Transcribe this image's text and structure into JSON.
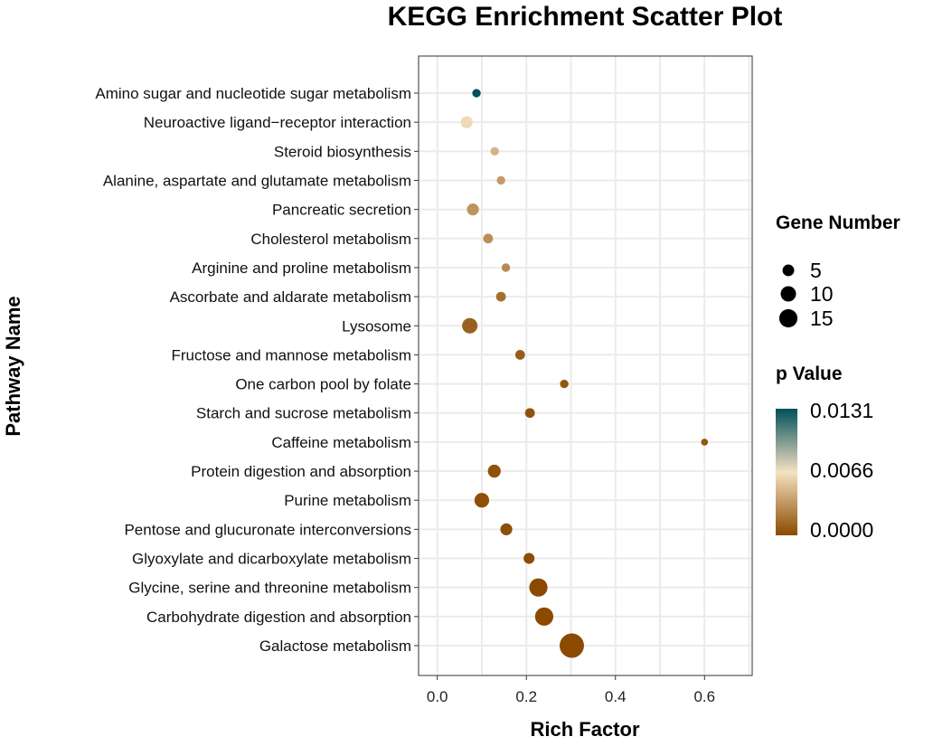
{
  "chart_data": {
    "type": "scatter",
    "title": "KEGG Enrichment Scatter Plot",
    "xlabel": "Rich Factor",
    "ylabel": "Pathway Name",
    "xlim": [
      -0.042,
      0.707
    ],
    "xticks": [
      0.0,
      0.2,
      0.4,
      0.6
    ],
    "xtick_labels": [
      "0.0",
      "0.2",
      "0.4",
      "0.6"
    ],
    "grid": true,
    "points": [
      {
        "pathway": "Amino sugar and nucleotide sugar metabolism",
        "rich_factor": 0.088,
        "gene_number": 3,
        "p_value": 0.0131
      },
      {
        "pathway": "Neuroactive ligand−receptor interaction",
        "rich_factor": 0.066,
        "gene_number": 6,
        "p_value": 0.0062
      },
      {
        "pathway": "Steroid biosynthesis",
        "rich_factor": 0.129,
        "gene_number": 3,
        "p_value": 0.0045
      },
      {
        "pathway": "Alanine, aspartate and glutamate metabolism",
        "rich_factor": 0.143,
        "gene_number": 3,
        "p_value": 0.0035
      },
      {
        "pathway": "Pancreatic secretion",
        "rich_factor": 0.08,
        "gene_number": 6,
        "p_value": 0.0032
      },
      {
        "pathway": "Cholesterol metabolism",
        "rich_factor": 0.114,
        "gene_number": 4,
        "p_value": 0.003
      },
      {
        "pathway": "Arginine and proline metabolism",
        "rich_factor": 0.154,
        "gene_number": 3,
        "p_value": 0.0028
      },
      {
        "pathway": "Ascorbate and aldarate metabolism",
        "rich_factor": 0.143,
        "gene_number": 4,
        "p_value": 0.0016
      },
      {
        "pathway": "Lysosome",
        "rich_factor": 0.073,
        "gene_number": 10,
        "p_value": 0.001
      },
      {
        "pathway": "Fructose and mannose metabolism",
        "rich_factor": 0.186,
        "gene_number": 4,
        "p_value": 0.0008
      },
      {
        "pathway": "One carbon pool by folate",
        "rich_factor": 0.285,
        "gene_number": 3,
        "p_value": 0.0006
      },
      {
        "pathway": "Starch and sucrose metabolism",
        "rich_factor": 0.208,
        "gene_number": 4,
        "p_value": 0.0004
      },
      {
        "pathway": "Caffeine metabolism",
        "rich_factor": 0.6,
        "gene_number": 2,
        "p_value": 0.0005
      },
      {
        "pathway": "Protein digestion and absorption",
        "rich_factor": 0.128,
        "gene_number": 7,
        "p_value": 0.0003
      },
      {
        "pathway": "Purine metabolism",
        "rich_factor": 0.1,
        "gene_number": 9,
        "p_value": 0.0002
      },
      {
        "pathway": "Pentose and glucuronate interconversions",
        "rich_factor": 0.155,
        "gene_number": 6,
        "p_value": 0.0002
      },
      {
        "pathway": "Glyoxylate and dicarboxylate metabolism",
        "rich_factor": 0.206,
        "gene_number": 5,
        "p_value": 0.0001
      },
      {
        "pathway": "Glycine, serine and threonine metabolism",
        "rich_factor": 0.227,
        "gene_number": 14,
        "p_value": 0.0
      },
      {
        "pathway": "Carbohydrate digestion and absorption",
        "rich_factor": 0.24,
        "gene_number": 14,
        "p_value": 0.0
      },
      {
        "pathway": "Galactose metabolism",
        "rich_factor": 0.302,
        "gene_number": 25,
        "p_value": 0.0
      }
    ],
    "size_legend": {
      "title": "Gene Number",
      "values": [
        5,
        10,
        15
      ],
      "labels": [
        "5",
        "10",
        "15"
      ]
    },
    "color_legend": {
      "title": "p Value",
      "range": [
        0.0,
        0.0131
      ],
      "labels": [
        "0.0131",
        "0.0066",
        "0.0000"
      ],
      "colors": {
        "low": "#8B4A00",
        "mid": "#F5E1C2",
        "high": "#00505A"
      }
    },
    "legend_placement": "right"
  }
}
